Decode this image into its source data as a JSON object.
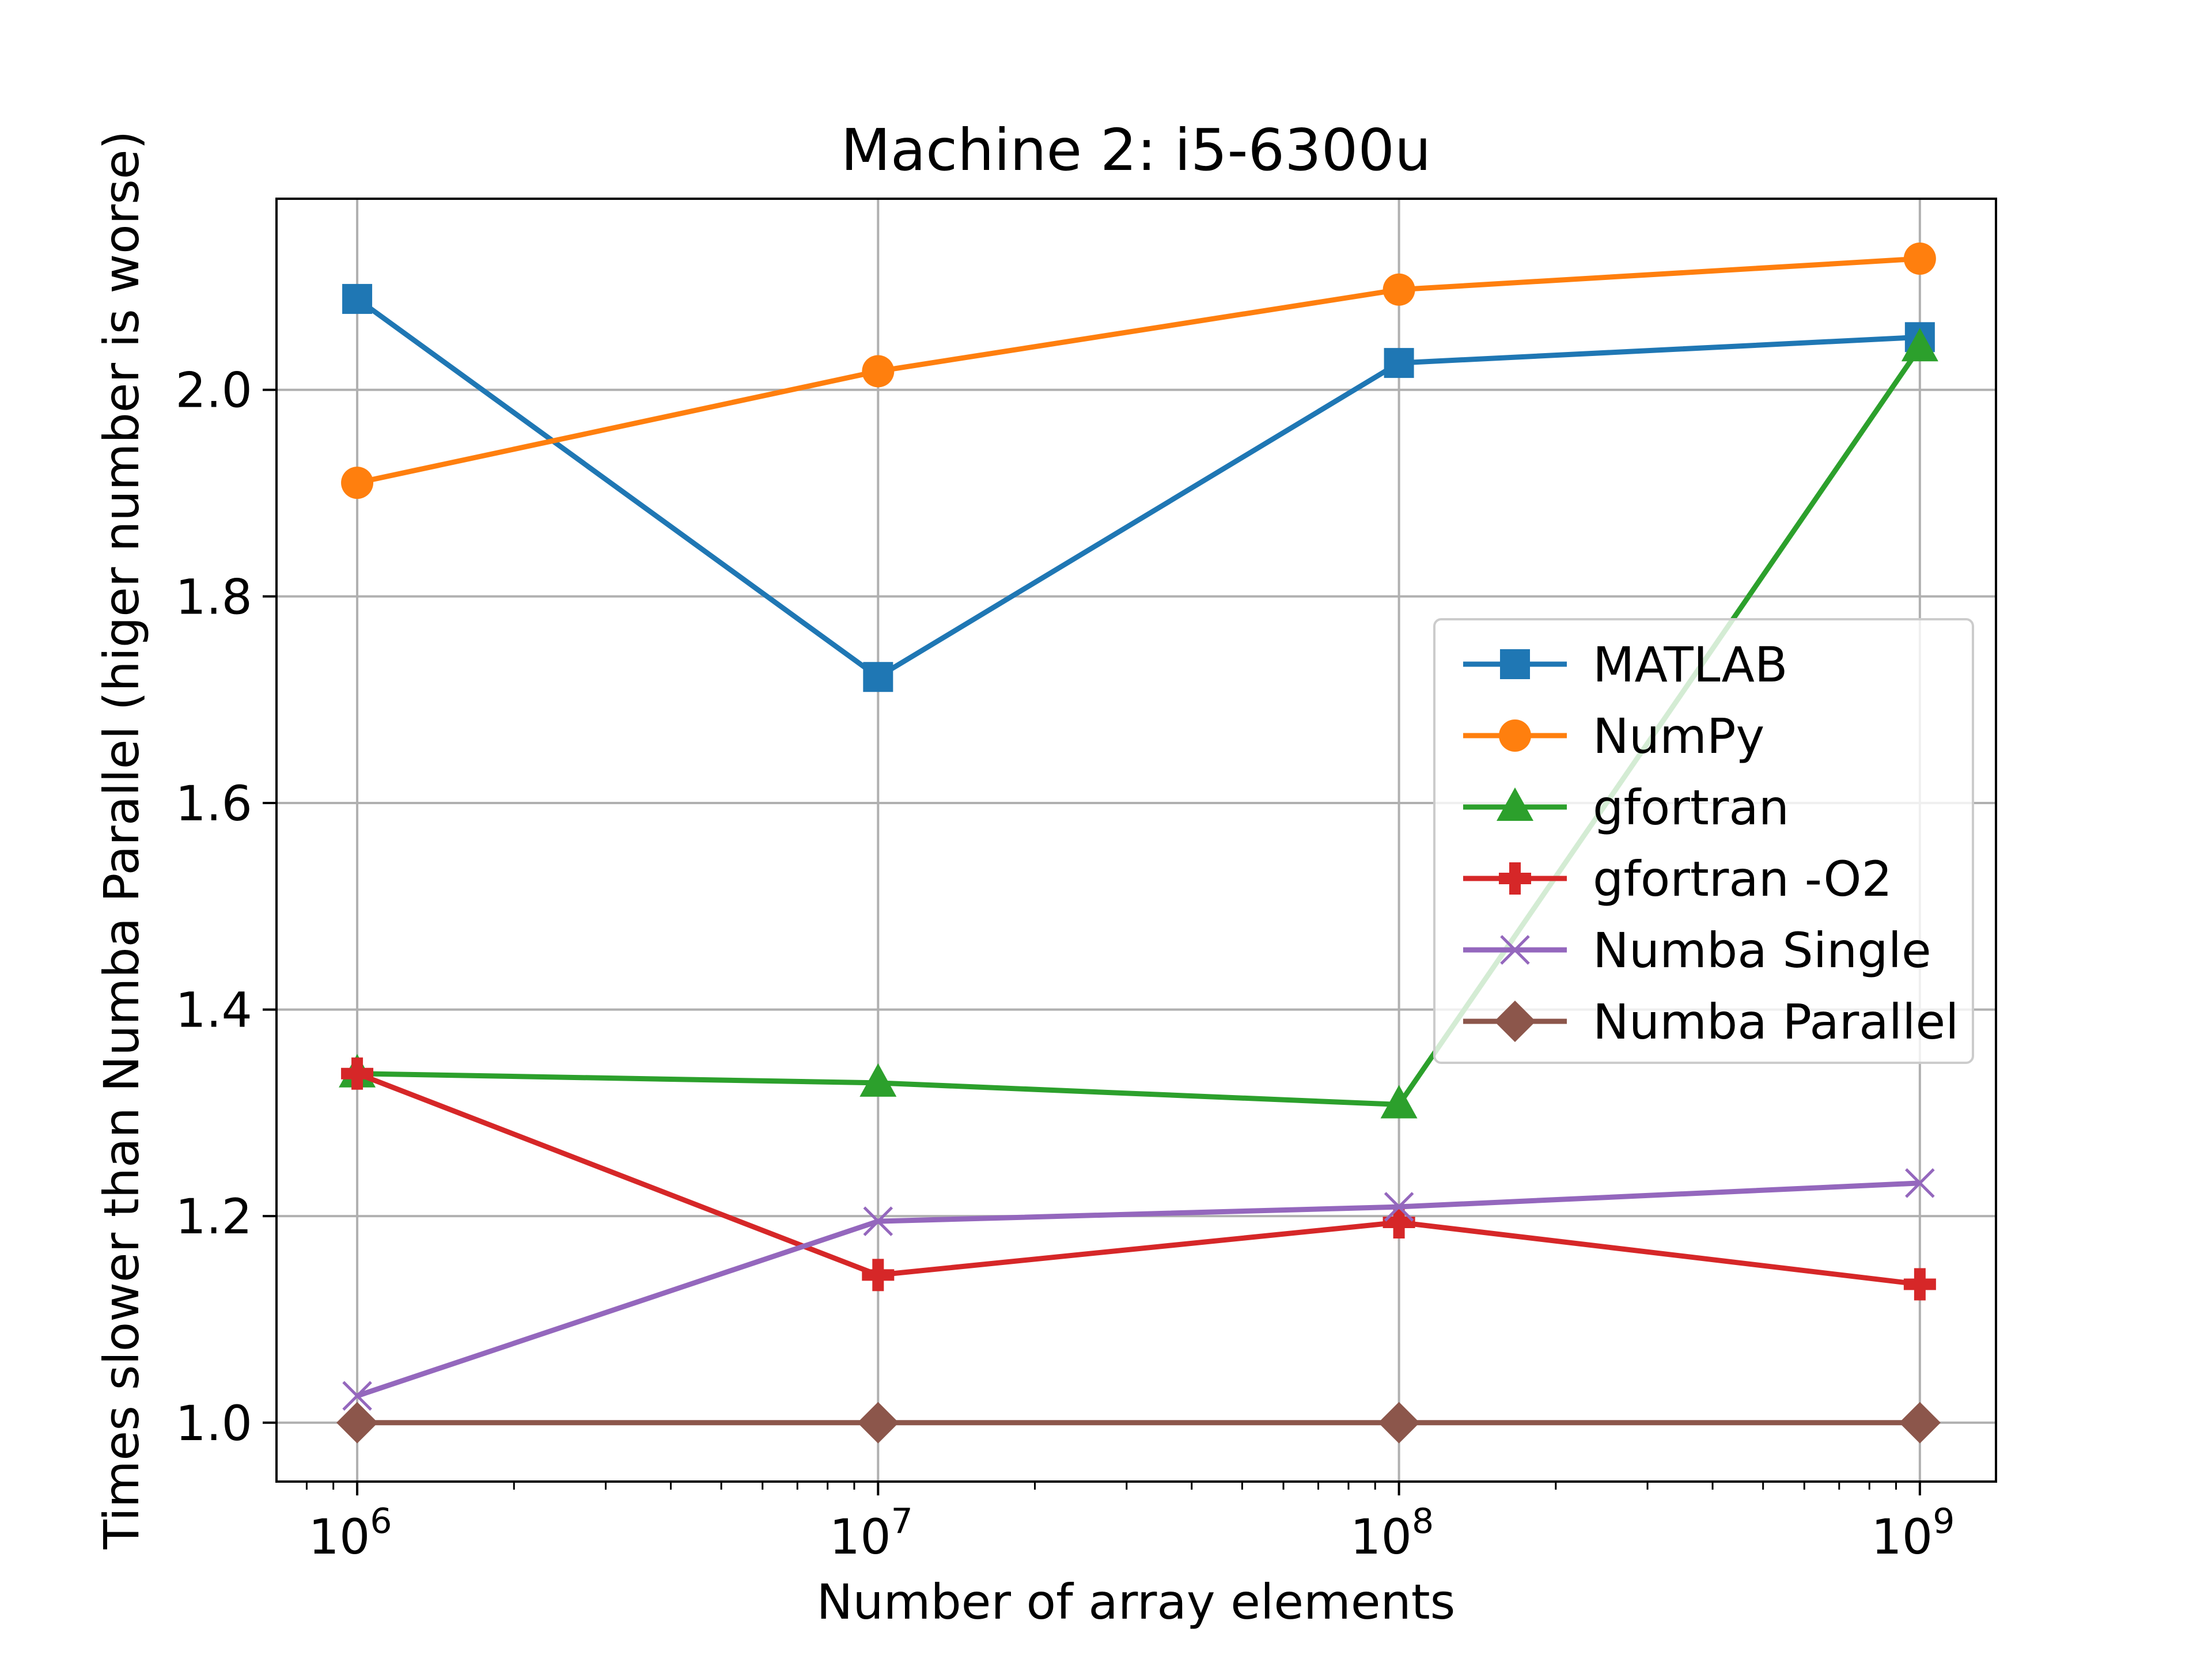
{
  "chart_data": {
    "type": "line",
    "title": "Machine 2: i5-6300u",
    "xlabel": "Number of array elements",
    "ylabel": "Times slower than Numba Parallel (higer number is worse)",
    "xscale": "log",
    "x": [
      1000000,
      10000000,
      100000000,
      1000000000
    ],
    "xlim": [
      700000,
      1400000000
    ],
    "ylim": [
      0.943,
      2.185
    ],
    "x_ticks": [
      {
        "value": 1000000,
        "base": "10",
        "exp": "6"
      },
      {
        "value": 10000000,
        "base": "10",
        "exp": "7"
      },
      {
        "value": 100000000,
        "base": "10",
        "exp": "8"
      },
      {
        "value": 1000000000,
        "base": "10",
        "exp": "9"
      }
    ],
    "y_ticks": [
      {
        "value": 1.0,
        "label": "1.0"
      },
      {
        "value": 1.2,
        "label": "1.2"
      },
      {
        "value": 1.4,
        "label": "1.4"
      },
      {
        "value": 1.6,
        "label": "1.6"
      },
      {
        "value": 1.8,
        "label": "1.8"
      },
      {
        "value": 2.0,
        "label": "2.0"
      }
    ],
    "grid": true,
    "legend_position": "center-right",
    "series": [
      {
        "name": "MATLAB",
        "color": "#1f77b4",
        "marker": "square",
        "values": [
          2.088,
          1.722,
          2.026,
          2.051
        ]
      },
      {
        "name": "NumPy",
        "color": "#ff7f0e",
        "marker": "circle",
        "values": [
          1.91,
          2.018,
          2.097,
          2.127
        ]
      },
      {
        "name": "gfortran",
        "color": "#2ca02c",
        "marker": "triangle",
        "values": [
          1.338,
          1.329,
          1.308,
          2.041
        ]
      },
      {
        "name": "gfortran -O2",
        "color": "#d62728",
        "marker": "plus",
        "values": [
          1.338,
          1.143,
          1.194,
          1.134
        ]
      },
      {
        "name": "Numba Single",
        "color": "#9467bd",
        "marker": "x",
        "values": [
          1.026,
          1.195,
          1.209,
          1.232
        ]
      },
      {
        "name": "Numba Parallel",
        "color": "#8c564b",
        "marker": "diamond",
        "values": [
          1.0,
          1.0,
          1.0,
          1.0
        ]
      }
    ]
  }
}
